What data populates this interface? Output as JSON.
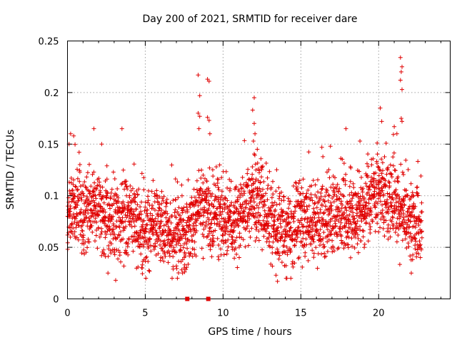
{
  "chart_data": {
    "type": "scatter",
    "title": "Day 200 of 2021, SRMTID for receiver dare",
    "xlabel": "GPS time / hours",
    "ylabel": "SRMTID / TECUs",
    "xlim": [
      0,
      24.6
    ],
    "ylim": [
      0,
      0.25
    ],
    "xticks": [
      0,
      5,
      10,
      15,
      20
    ],
    "xtick_labels": [
      "0",
      "5",
      "10",
      "15",
      "20"
    ],
    "yticks": [
      0,
      0.05,
      0.1,
      0.15,
      0.2,
      0.25
    ],
    "ytick_labels": [
      "0",
      "0.05",
      "0.1",
      "0.15",
      "0.2",
      "0.25"
    ],
    "grid": true,
    "marker": "plus",
    "series_color": "#e00000",
    "zero_markers_x": [
      7.7,
      9.05
    ],
    "density_profile": [
      [
        0.0,
        0.075
      ],
      [
        0.5,
        0.085
      ],
      [
        1.0,
        0.08
      ],
      [
        1.5,
        0.09
      ],
      [
        2.0,
        0.085
      ],
      [
        2.5,
        0.078
      ],
      [
        3.0,
        0.08
      ],
      [
        3.5,
        0.075
      ],
      [
        4.0,
        0.078
      ],
      [
        4.5,
        0.075
      ],
      [
        5.0,
        0.065
      ],
      [
        5.5,
        0.07
      ],
      [
        6.0,
        0.07
      ],
      [
        6.5,
        0.068
      ],
      [
        7.0,
        0.062
      ],
      [
        7.5,
        0.06
      ],
      [
        8.0,
        0.07
      ],
      [
        8.5,
        0.09
      ],
      [
        9.0,
        0.08
      ],
      [
        9.5,
        0.085
      ],
      [
        10.0,
        0.075
      ],
      [
        10.5,
        0.07
      ],
      [
        11.0,
        0.075
      ],
      [
        11.5,
        0.082
      ],
      [
        12.0,
        0.1
      ],
      [
        12.5,
        0.09
      ],
      [
        13.0,
        0.08
      ],
      [
        13.5,
        0.07
      ],
      [
        14.0,
        0.065
      ],
      [
        14.5,
        0.07
      ],
      [
        15.0,
        0.075
      ],
      [
        15.5,
        0.075
      ],
      [
        16.0,
        0.075
      ],
      [
        16.5,
        0.075
      ],
      [
        17.0,
        0.08
      ],
      [
        17.5,
        0.085
      ],
      [
        18.0,
        0.08
      ],
      [
        18.5,
        0.075
      ],
      [
        19.0,
        0.085
      ],
      [
        19.5,
        0.095
      ],
      [
        20.0,
        0.105
      ],
      [
        20.5,
        0.1
      ],
      [
        21.0,
        0.095
      ],
      [
        21.5,
        0.085
      ],
      [
        22.0,
        0.075
      ],
      [
        22.5,
        0.07
      ],
      [
        22.8,
        0.07
      ]
    ],
    "spikes": [
      [
        8.4,
        0.217
      ],
      [
        8.5,
        0.197
      ],
      [
        8.4,
        0.18
      ],
      [
        8.5,
        0.177
      ],
      [
        8.45,
        0.165
      ],
      [
        9.0,
        0.213
      ],
      [
        9.1,
        0.211
      ],
      [
        9.0,
        0.176
      ],
      [
        9.1,
        0.173
      ],
      [
        9.15,
        0.16
      ],
      [
        12.0,
        0.195
      ],
      [
        11.9,
        0.183
      ],
      [
        12.0,
        0.17
      ],
      [
        12.05,
        0.16
      ],
      [
        11.95,
        0.153
      ],
      [
        20.1,
        0.185
      ],
      [
        20.2,
        0.172
      ],
      [
        21.0,
        0.167
      ],
      [
        21.4,
        0.234
      ],
      [
        21.5,
        0.225
      ],
      [
        21.45,
        0.22
      ],
      [
        21.4,
        0.212
      ],
      [
        21.5,
        0.203
      ],
      [
        21.45,
        0.175
      ],
      [
        21.5,
        0.172
      ],
      [
        3.5,
        0.165
      ],
      [
        1.7,
        0.165
      ],
      [
        17.9,
        0.165
      ],
      [
        0.2,
        0.16
      ],
      [
        0.4,
        0.158
      ],
      [
        0.1,
        0.15
      ],
      [
        12.2,
        0.145
      ],
      [
        2.2,
        0.15
      ],
      [
        16.9,
        0.148
      ],
      [
        18.8,
        0.153
      ],
      [
        3.1,
        0.018
      ],
      [
        13.5,
        0.017
      ],
      [
        22.1,
        0.025
      ],
      [
        7.4,
        0.025
      ],
      [
        2.6,
        0.025
      ],
      [
        7.5,
        0.03
      ],
      [
        4.8,
        0.03
      ],
      [
        13.4,
        0.023
      ]
    ]
  }
}
